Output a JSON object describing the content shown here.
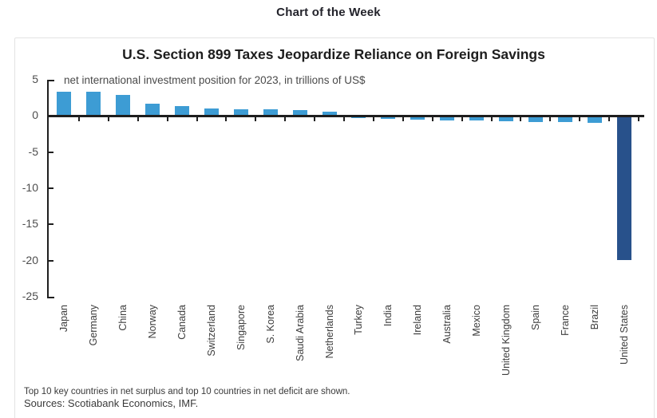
{
  "page": {
    "header": "Chart of the Week"
  },
  "chart_data": {
    "type": "bar",
    "title": "U.S. Section 899 Taxes Jeopardize Reliance on Foreign Savings",
    "subtitle": "net international investment position for 2023, in trillions of US$",
    "categories": [
      "Japan",
      "Germany",
      "China",
      "Norway",
      "Canada",
      "Switzerland",
      "Singapore",
      "S. Korea",
      "Saudi Arabia",
      "Netherlands",
      "Turkey",
      "India",
      "Ireland",
      "Australia",
      "Mexico",
      "United Kingdom",
      "Spain",
      "France",
      "Brazil",
      "United States"
    ],
    "values": [
      3.4,
      3.3,
      2.9,
      1.7,
      1.4,
      1.0,
      0.9,
      0.9,
      0.8,
      0.6,
      -0.3,
      -0.4,
      -0.5,
      -0.6,
      -0.6,
      -0.7,
      -0.8,
      -0.8,
      -0.9,
      -19.9
    ],
    "ylim": [
      -25,
      5
    ],
    "yticks": [
      5,
      0,
      -5,
      -10,
      -15,
      -20,
      -25
    ],
    "xlabel": "",
    "ylabel": "",
    "grid": false,
    "legend": "none",
    "bar_color": "#3d9cd4",
    "highlight_country": "United States",
    "highlight_color": "#28518b",
    "axis_color": "#1e1e1e",
    "notes": [
      "Top 10 key countries in net surplus and top 10 countries in net deficit are shown.",
      "Sources: Scotiabank Economics, IMF."
    ]
  }
}
